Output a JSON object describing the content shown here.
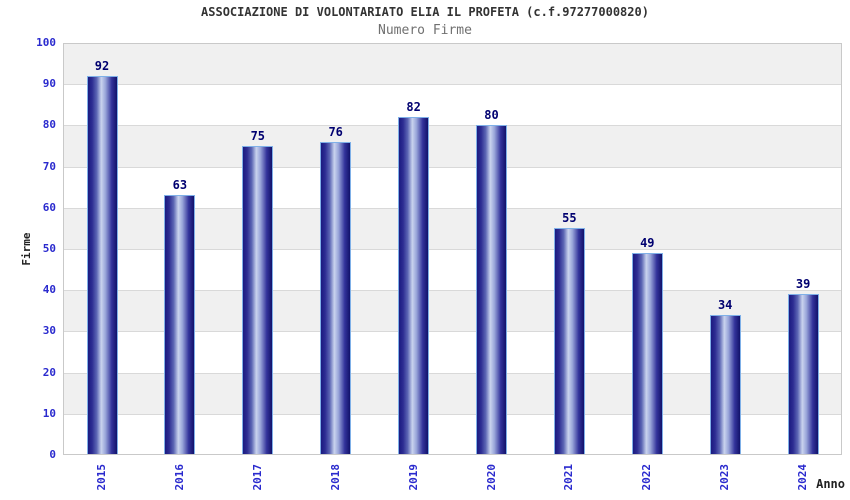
{
  "chart_data": {
    "type": "bar",
    "title": "ASSOCIAZIONE DI VOLONTARIATO ELIA IL PROFETA (c.f.97277000820)",
    "subtitle": "Numero Firme",
    "xlabel": "Anno",
    "ylabel": "Firme",
    "categories": [
      "2015",
      "2016",
      "2017",
      "2018",
      "2019",
      "2020",
      "2021",
      "2022",
      "2023",
      "2024"
    ],
    "values": [
      92,
      63,
      75,
      76,
      82,
      80,
      55,
      49,
      34,
      39
    ],
    "ylim": [
      0,
      100
    ],
    "ytick_step": 10,
    "grid": true,
    "legend": "none",
    "band_pattern": "alternating horizontal 10-unit bands, gray on top band",
    "colors": {
      "background": "#ffffff",
      "band": "#f0f0f0",
      "grid_line": "#d9d9d9",
      "plot_border": "#c9c9c9",
      "bar_dark": "#1b1b80",
      "bar_mid": "#5c66b4",
      "bar_light": "#c9d3ee",
      "bar_border": "#7fb0e8",
      "value_label": "#000070",
      "tick_label": "#2a2ace",
      "axis_title": "#222222",
      "title": "#333333",
      "subtitle": "#707070"
    }
  }
}
